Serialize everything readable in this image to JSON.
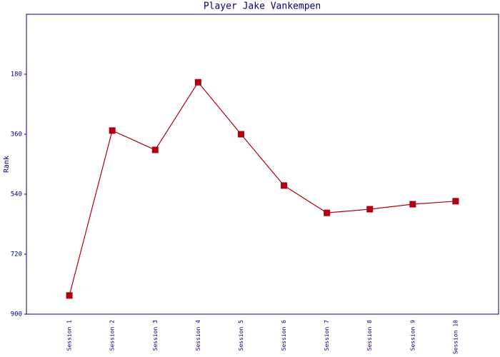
{
  "chart_data": {
    "type": "line",
    "title": "Player Jake Vankempen",
    "y_label": "Rank",
    "categories": [
      "Session 1",
      "Session 2",
      "Session 3",
      "Session 4",
      "Session 5",
      "Session 6",
      "Session 7",
      "Session 8",
      "Session 9",
      "Session 10"
    ],
    "series": [
      {
        "name": "Rank",
        "color": "#b00010",
        "values": [
          844,
          349,
          407,
          204,
          360,
          514,
          596,
          585,
          570,
          561
        ]
      }
    ],
    "ylim": [
      0,
      900
    ],
    "y_inverted": true,
    "yticks": [
      180,
      360,
      540,
      720,
      900
    ],
    "grid": false
  }
}
